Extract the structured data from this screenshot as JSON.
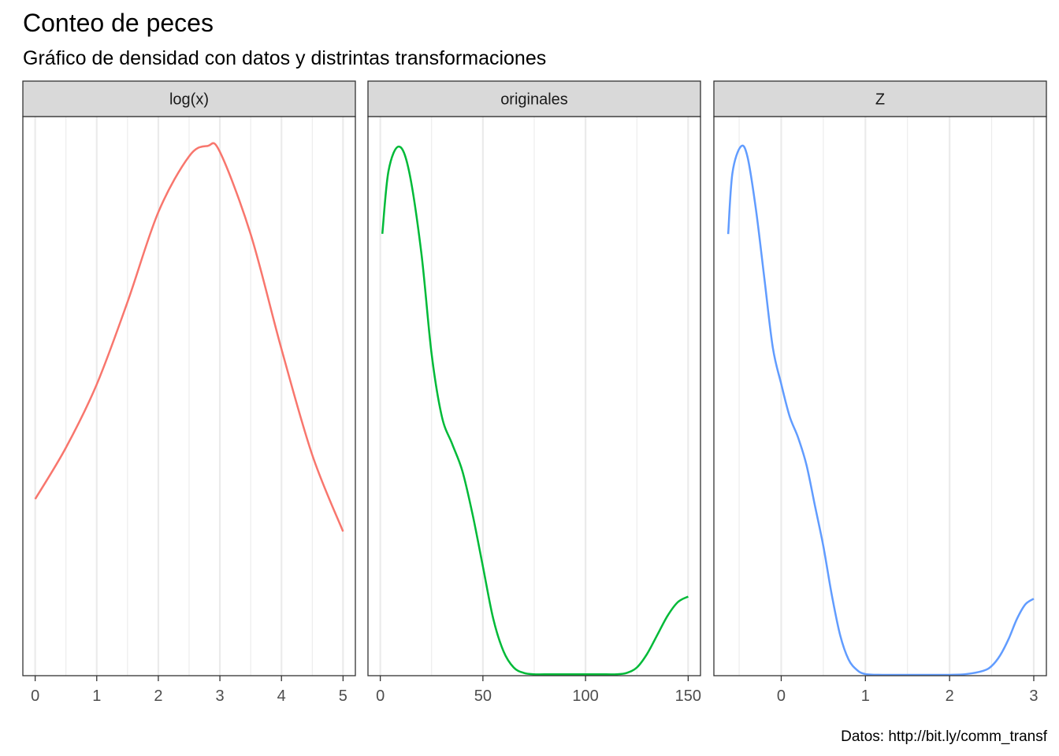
{
  "title": "Conteo de peces",
  "subtitle": "Gráfico de densidad con datos y distrintas transformaciones",
  "caption": "Datos: http://bit.ly/comm_transf",
  "colors": {
    "log": "#F8766D",
    "originales": "#00BA38",
    "z": "#619CFF",
    "strip_fill": "#d9d9d9",
    "grid": "#ebebeb",
    "border": "#333333"
  },
  "chart_data": [
    {
      "type": "line",
      "panel": "log(x)",
      "color": "#F8766D",
      "xlim": [
        -0.2,
        5.2
      ],
      "ylim": [
        0,
        0.38
      ],
      "x_ticks": [
        0,
        1,
        2,
        3,
        4,
        5
      ],
      "x_tick_labels": [
        "0",
        "1",
        "2",
        "3",
        "4",
        "5"
      ],
      "x": [
        0,
        0.5,
        1,
        1.5,
        2,
        2.5,
        2.8,
        3,
        3.5,
        4,
        4.5,
        5
      ],
      "y": [
        0.12,
        0.155,
        0.198,
        0.254,
        0.315,
        0.353,
        0.36,
        0.356,
        0.3,
        0.222,
        0.15,
        0.098
      ]
    },
    {
      "type": "line",
      "panel": "originales",
      "color": "#00BA38",
      "xlim": [
        -6,
        156
      ],
      "ylim": [
        0,
        0.0205
      ],
      "x_ticks": [
        0,
        50,
        100,
        150
      ],
      "x_tick_labels": [
        "0",
        "50",
        "100",
        "150"
      ],
      "x": [
        1,
        4,
        9,
        14,
        20,
        25,
        30,
        35,
        40,
        45,
        50,
        55,
        60,
        65,
        70,
        75,
        80,
        90,
        100,
        110,
        115,
        120,
        125,
        130,
        135,
        140,
        145,
        150
      ],
      "y": [
        0.0162,
        0.0185,
        0.0194,
        0.0185,
        0.0155,
        0.0118,
        0.0095,
        0.0085,
        0.0075,
        0.0059,
        0.004,
        0.0021,
        0.0009,
        0.0003,
        0.0001,
        5e-05,
        5e-05,
        5e-05,
        5e-05,
        5e-05,
        5e-05,
        0.0001,
        0.0003,
        0.0008,
        0.0015,
        0.0022,
        0.0027,
        0.0029
      ]
    },
    {
      "type": "line",
      "panel": "Z",
      "color": "#619CFF",
      "xlim": [
        -0.8,
        3.15
      ],
      "ylim": [
        0,
        0.69
      ],
      "x_ticks": [
        0,
        1,
        2,
        3
      ],
      "x_tick_labels": [
        "0",
        "1",
        "2",
        "3"
      ],
      "x": [
        -0.63,
        -0.58,
        -0.48,
        -0.4,
        -0.3,
        -0.2,
        -0.1,
        0,
        0.1,
        0.2,
        0.3,
        0.4,
        0.5,
        0.6,
        0.7,
        0.8,
        0.9,
        1,
        1.2,
        1.5,
        1.8,
        2,
        2.2,
        2.4,
        2.5,
        2.6,
        2.7,
        2.8,
        2.9,
        3
      ],
      "y": [
        0.545,
        0.62,
        0.653,
        0.64,
        0.575,
        0.49,
        0.405,
        0.36,
        0.32,
        0.294,
        0.26,
        0.21,
        0.16,
        0.1,
        0.05,
        0.02,
        0.007,
        0.002,
        0.001,
        0.001,
        0.001,
        0.001,
        0.002,
        0.006,
        0.012,
        0.025,
        0.045,
        0.07,
        0.088,
        0.095
      ]
    }
  ]
}
